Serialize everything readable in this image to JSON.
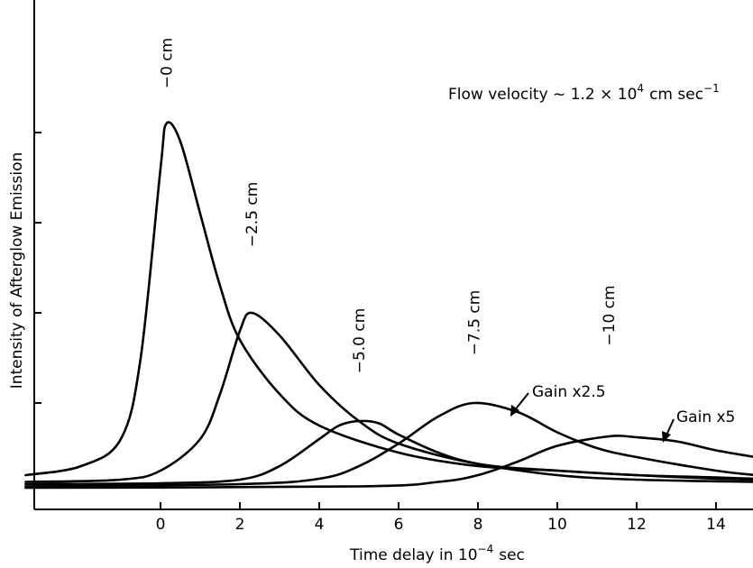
{
  "chart_data": {
    "type": "line",
    "xlabel_main": "Time delay in 10",
    "xlabel_exp": "−4",
    "xlabel_unit": "sec",
    "ylabel": "Intensity of Afterglow Emission",
    "xlim": [
      -3.4,
      15
    ],
    "ylim": [
      0,
      100
    ],
    "x_ticks": [
      0,
      2,
      4,
      6,
      8,
      10,
      12,
      14
    ],
    "y_ticks": [
      20,
      40,
      60,
      80
    ],
    "annotations": {
      "flow_velocity": {
        "prefix": "Flow velocity ~ 1.2 × 10",
        "exp": "4",
        "suffix": "cm sec",
        "exp2": "−1"
      },
      "gain_2_5": "Gain x2.5",
      "gain_5": "Gain x5"
    },
    "series": [
      {
        "name": "−0 cm",
        "peak_x": 0.15,
        "peak_y": 82,
        "x": [
          -3.4,
          -2,
          -1,
          -0.5,
          0,
          0.15,
          0.5,
          1,
          1.5,
          2,
          3,
          4,
          6,
          8,
          10,
          12,
          14,
          15
        ],
        "y": [
          4,
          6,
          12,
          30,
          72,
          82,
          78,
          62,
          46,
          34,
          22,
          15,
          9,
          6,
          5,
          4,
          3.5,
          3.2
        ]
      },
      {
        "name": "−2.5 cm",
        "peak_x": 2.3,
        "peak_y": 40,
        "x": [
          -3.4,
          -1,
          0,
          1,
          1.5,
          2,
          2.3,
          3,
          4,
          5,
          6,
          8,
          10,
          12,
          14,
          15
        ],
        "y": [
          2.5,
          3,
          5,
          12,
          22,
          36,
          40,
          35,
          24,
          16,
          11,
          6.5,
          5,
          4,
          3.2,
          3
        ]
      },
      {
        "name": "−5.0 cm",
        "peak_x": 5.0,
        "peak_y": 16,
        "x": [
          -3.4,
          0,
          2,
          3,
          4,
          4.5,
          5,
          5.5,
          6,
          7,
          8,
          10,
          12,
          15
        ],
        "y": [
          2,
          2.2,
          3,
          6,
          12,
          15,
          16,
          15.5,
          13,
          9,
          6.5,
          4,
          3,
          2.5
        ]
      },
      {
        "name": "−7.5 cm",
        "peak_x": 7.9,
        "peak_y": 20,
        "x": [
          -3.4,
          2,
          4,
          5,
          6,
          7,
          7.9,
          9,
          10,
          11,
          12,
          14,
          15
        ],
        "y": [
          1.5,
          2,
          3.2,
          6,
          11,
          17,
          20,
          18,
          13.5,
          10,
          8,
          5,
          4
        ]
      },
      {
        "name": "−10 cm",
        "peak_x": 11.3,
        "peak_y": 12.6,
        "x": [
          -3.4,
          5,
          7,
          8,
          9,
          10,
          11.3,
          12,
          13,
          14,
          15
        ],
        "y": [
          1.2,
          1.5,
          2.5,
          4,
          7,
          10.5,
          12.6,
          12.4,
          11.5,
          9.5,
          8
        ]
      }
    ]
  }
}
